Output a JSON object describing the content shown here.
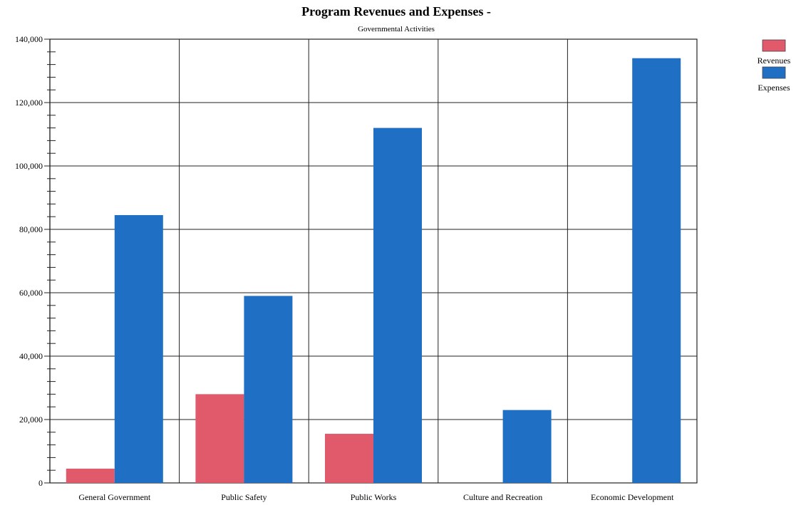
{
  "chart_data": {
    "type": "bar",
    "title": "Program Revenues and Expenses -",
    "subtitle": "Governmental Activities",
    "xlabel": "",
    "ylabel": "",
    "categories": [
      "General Government",
      "Public Safety",
      "Public Works",
      "Culture and Recreation",
      "Economic Development"
    ],
    "series": [
      {
        "name": "Revenues",
        "values": [
          4500,
          28000,
          15500,
          0,
          0
        ],
        "color": "#e05a6b"
      },
      {
        "name": "Expenses",
        "values": [
          84500,
          59000,
          112000,
          23000,
          134000
        ],
        "color": "#1f6fc5"
      }
    ],
    "ylim": [
      0,
      140000
    ],
    "yticks": [
      0,
      20000,
      40000,
      60000,
      80000,
      100000,
      120000,
      140000
    ],
    "ytick_labels": [
      "0",
      "20,000",
      "40,000",
      "60,000",
      "80,000",
      "100,000",
      "120,000",
      "140,000"
    ],
    "grid": true,
    "legend_position": "top-right"
  }
}
